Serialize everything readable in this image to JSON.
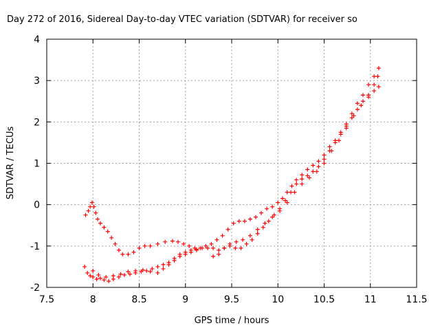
{
  "chart_data": {
    "type": "scatter",
    "title": "Day 272 of 2016, Sidereal Day-to-day VTEC variation (SDTVAR) for receiver so",
    "xlabel": "GPS time / hours",
    "ylabel": "SDTVAR / TECUs",
    "xlim": [
      7.5,
      11.5
    ],
    "ylim": [
      -2,
      4
    ],
    "xticks": [
      "7.5",
      "8",
      "8.5",
      "9",
      "9.5",
      "10",
      "10.5",
      "11",
      "11.5"
    ],
    "yticks": [
      "-2",
      "-1",
      "0",
      "1",
      "2",
      "3",
      "4"
    ],
    "grid": true,
    "marker": "+",
    "series": [
      {
        "color": "#ff0000",
        "points": [
          [
            7.92,
            -0.25
          ],
          [
            7.95,
            -0.15
          ],
          [
            7.97,
            -0.05
          ],
          [
            7.99,
            0.05
          ],
          [
            8.01,
            -0.05
          ],
          [
            8.03,
            -0.2
          ],
          [
            8.05,
            -0.35
          ],
          [
            8.08,
            -0.45
          ],
          [
            8.12,
            -0.55
          ],
          [
            8.16,
            -0.65
          ],
          [
            8.2,
            -0.8
          ],
          [
            8.24,
            -0.95
          ],
          [
            8.28,
            -1.1
          ],
          [
            8.32,
            -1.2
          ],
          [
            8.38,
            -1.2
          ],
          [
            8.44,
            -1.15
          ],
          [
            8.5,
            -1.05
          ],
          [
            8.56,
            -1.0
          ],
          [
            8.62,
            -1.0
          ],
          [
            8.7,
            -0.95
          ],
          [
            8.78,
            -0.9
          ],
          [
            8.86,
            -0.88
          ],
          [
            8.92,
            -0.9
          ],
          [
            8.98,
            -0.95
          ],
          [
            9.04,
            -1.0
          ],
          [
            9.1,
            -1.05
          ],
          [
            9.16,
            -1.05
          ],
          [
            9.22,
            -1.0
          ],
          [
            9.28,
            -0.95
          ],
          [
            9.34,
            -0.85
          ],
          [
            9.4,
            -0.75
          ],
          [
            9.46,
            -0.6
          ],
          [
            9.52,
            -0.45
          ],
          [
            9.58,
            -0.4
          ],
          [
            9.64,
            -0.4
          ],
          [
            9.7,
            -0.35
          ],
          [
            9.76,
            -0.3
          ],
          [
            9.82,
            -0.2
          ],
          [
            9.88,
            -0.1
          ],
          [
            9.94,
            -0.05
          ],
          [
            10.0,
            0.05
          ],
          [
            10.05,
            0.15
          ],
          [
            10.1,
            0.3
          ],
          [
            10.15,
            0.45
          ],
          [
            10.2,
            0.6
          ],
          [
            10.26,
            0.72
          ],
          [
            10.32,
            0.85
          ],
          [
            10.38,
            0.95
          ],
          [
            10.44,
            1.05
          ],
          [
            10.5,
            1.2
          ],
          [
            10.56,
            1.4
          ],
          [
            10.62,
            1.55
          ],
          [
            10.68,
            1.75
          ],
          [
            10.74,
            1.95
          ],
          [
            10.8,
            2.2
          ],
          [
            10.86,
            2.45
          ],
          [
            10.92,
            2.65
          ],
          [
            10.98,
            2.9
          ],
          [
            11.04,
            3.1
          ],
          [
            11.09,
            3.3
          ],
          [
            7.91,
            -1.5
          ],
          [
            7.94,
            -1.65
          ],
          [
            7.97,
            -1.72
          ],
          [
            8.0,
            -1.75
          ],
          [
            8.04,
            -1.8
          ],
          [
            8.08,
            -1.78
          ],
          [
            8.12,
            -1.82
          ],
          [
            8.17,
            -1.85
          ],
          [
            8.22,
            -1.8
          ],
          [
            8.28,
            -1.75
          ],
          [
            8.34,
            -1.7
          ],
          [
            8.4,
            -1.68
          ],
          [
            8.46,
            -1.65
          ],
          [
            8.52,
            -1.62
          ],
          [
            8.58,
            -1.6
          ],
          [
            8.64,
            -1.55
          ],
          [
            8.7,
            -1.5
          ],
          [
            8.76,
            -1.45
          ],
          [
            8.82,
            -1.4
          ],
          [
            8.88,
            -1.3
          ],
          [
            8.94,
            -1.2
          ],
          [
            9.0,
            -1.15
          ],
          [
            9.06,
            -1.1
          ],
          [
            9.12,
            -1.08
          ],
          [
            9.18,
            -1.05
          ],
          [
            9.24,
            -1.05
          ],
          [
            9.3,
            -1.05
          ],
          [
            9.36,
            -1.1
          ],
          [
            9.42,
            -1.05
          ],
          [
            9.48,
            -1.0
          ],
          [
            9.54,
            -1.05
          ],
          [
            9.6,
            -1.05
          ],
          [
            9.66,
            -0.95
          ],
          [
            9.72,
            -0.85
          ],
          [
            9.78,
            -0.7
          ],
          [
            9.84,
            -0.55
          ],
          [
            9.9,
            -0.4
          ],
          [
            9.96,
            -0.25
          ],
          [
            10.02,
            -0.1
          ],
          [
            10.08,
            0.1
          ],
          [
            10.14,
            0.3
          ],
          [
            10.2,
            0.5
          ],
          [
            10.26,
            0.62
          ],
          [
            10.32,
            0.7
          ],
          [
            10.38,
            0.8
          ],
          [
            10.44,
            0.92
          ],
          [
            10.5,
            1.1
          ],
          [
            10.56,
            1.3
          ],
          [
            10.62,
            1.5
          ],
          [
            10.68,
            1.7
          ],
          [
            10.74,
            1.9
          ],
          [
            10.8,
            2.1
          ],
          [
            10.86,
            2.3
          ],
          [
            10.92,
            2.5
          ],
          [
            10.98,
            2.65
          ],
          [
            11.04,
            2.75
          ],
          [
            11.09,
            2.85
          ],
          [
            8.0,
            -1.6
          ],
          [
            8.06,
            -1.7
          ],
          [
            8.14,
            -1.75
          ],
          [
            8.22,
            -1.72
          ],
          [
            8.3,
            -1.68
          ],
          [
            8.38,
            -1.62
          ],
          [
            8.46,
            -1.6
          ],
          [
            8.54,
            -1.58
          ],
          [
            8.62,
            -1.62
          ],
          [
            8.7,
            -1.65
          ],
          [
            8.76,
            -1.55
          ],
          [
            8.82,
            -1.45
          ],
          [
            8.88,
            -1.35
          ],
          [
            8.94,
            -1.25
          ],
          [
            9.0,
            -1.2
          ],
          [
            9.06,
            -1.15
          ],
          [
            9.12,
            -1.1
          ],
          [
            9.3,
            -1.25
          ],
          [
            9.36,
            -1.2
          ],
          [
            9.42,
            -1.05
          ],
          [
            9.48,
            -0.95
          ],
          [
            9.55,
            -0.9
          ],
          [
            9.62,
            -0.85
          ],
          [
            9.7,
            -0.75
          ],
          [
            9.78,
            -0.6
          ],
          [
            9.86,
            -0.45
          ],
          [
            9.94,
            -0.3
          ],
          [
            10.02,
            -0.15
          ],
          [
            10.1,
            0.05
          ],
          [
            10.18,
            0.3
          ],
          [
            10.26,
            0.5
          ],
          [
            10.34,
            0.65
          ],
          [
            10.42,
            0.8
          ],
          [
            10.5,
            1.0
          ],
          [
            10.58,
            1.3
          ],
          [
            10.66,
            1.55
          ],
          [
            10.74,
            1.85
          ],
          [
            10.82,
            2.15
          ],
          [
            10.9,
            2.4
          ],
          [
            10.98,
            2.6
          ],
          [
            11.04,
            2.9
          ],
          [
            11.08,
            3.1
          ]
        ]
      }
    ]
  }
}
